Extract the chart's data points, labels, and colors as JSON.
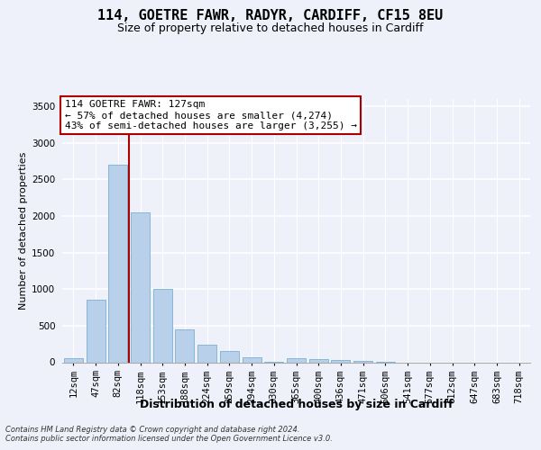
{
  "title": "114, GOETRE FAWR, RADYR, CARDIFF, CF15 8EU",
  "subtitle": "Size of property relative to detached houses in Cardiff",
  "xlabel": "Distribution of detached houses by size in Cardiff",
  "ylabel": "Number of detached properties",
  "footer_line1": "Contains HM Land Registry data © Crown copyright and database right 2024.",
  "footer_line2": "Contains public sector information licensed under the Open Government Licence v3.0.",
  "categories": [
    "12sqm",
    "47sqm",
    "82sqm",
    "118sqm",
    "153sqm",
    "188sqm",
    "224sqm",
    "259sqm",
    "294sqm",
    "330sqm",
    "365sqm",
    "400sqm",
    "436sqm",
    "471sqm",
    "506sqm",
    "541sqm",
    "577sqm",
    "612sqm",
    "647sqm",
    "683sqm",
    "718sqm"
  ],
  "values": [
    55,
    850,
    2700,
    2050,
    1000,
    455,
    245,
    155,
    65,
    5,
    55,
    40,
    25,
    20,
    5,
    0,
    0,
    0,
    0,
    0,
    0
  ],
  "bar_color": "#b8d0ea",
  "bar_edge_color": "#7aafd4",
  "background_color": "#eef1fa",
  "grid_color": "#ffffff",
  "vline_color": "#aa0000",
  "vline_index": 2.5,
  "annotation_line1": "114 GOETRE FAWR: 127sqm",
  "annotation_line2": "← 57% of detached houses are smaller (4,274)",
  "annotation_line3": "43% of semi-detached houses are larger (3,255) →",
  "ylim_max": 3600,
  "yticks": [
    0,
    500,
    1000,
    1500,
    2000,
    2500,
    3000,
    3500
  ],
  "title_fontsize": 11,
  "subtitle_fontsize": 9,
  "xlabel_fontsize": 9,
  "ylabel_fontsize": 8,
  "tick_fontsize": 7.5,
  "ann_fontsize": 8,
  "footer_fontsize": 6
}
